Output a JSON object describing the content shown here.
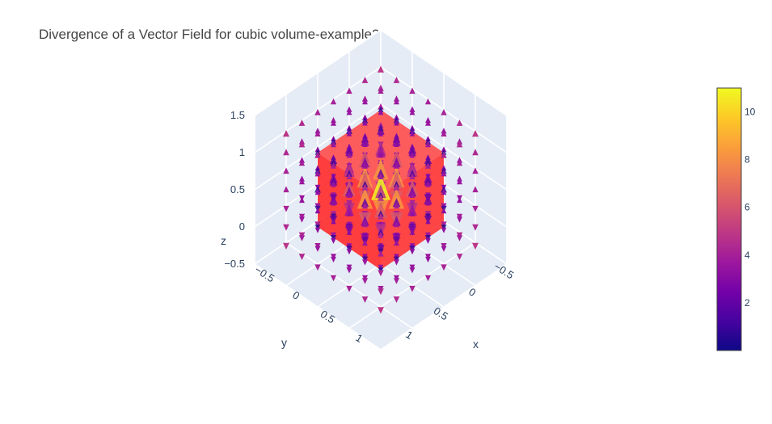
{
  "chart_data": {
    "type": "cone",
    "title": "Divergence of a Vector Field for cubic volume-example2",
    "xlabel": "x",
    "ylabel": "y",
    "zlabel": "z",
    "axes": {
      "x": {
        "range": [
          -0.5,
          1.5
        ],
        "ticks": [
          "−0.5",
          "0",
          "0.5",
          "1"
        ],
        "tick_values": [
          -0.5,
          0,
          0.5,
          1
        ]
      },
      "y": {
        "range": [
          -0.5,
          1.5
        ],
        "ticks": [
          "−0.5",
          "0",
          "0.5",
          "1"
        ],
        "tick_values": [
          -0.5,
          0,
          0.5,
          1
        ]
      },
      "z": {
        "range": [
          -0.5,
          1.5
        ],
        "ticks": [
          "−0.5",
          "0",
          "0.5",
          "1",
          "1.5"
        ],
        "tick_values": [
          -0.5,
          0,
          0.5,
          1,
          1.5
        ]
      }
    },
    "cube": {
      "x": [
        0,
        1
      ],
      "y": [
        0,
        1
      ],
      "z": [
        0,
        1
      ],
      "color": "#ff2a2a",
      "opacity": 0.9
    },
    "colorbar": {
      "min": 0,
      "max": 11,
      "ticks": [
        "2",
        "4",
        "6",
        "8",
        "10"
      ],
      "tick_values": [
        2,
        4,
        6,
        8,
        10
      ],
      "colorscale": [
        "#0d0887",
        "#46039f",
        "#7201a8",
        "#9c179e",
        "#bd3786",
        "#d8576b",
        "#ed7953",
        "#fb9f3a",
        "#fdca26",
        "#f0f921"
      ]
    }
  },
  "colors": {
    "grid": "#ffffff",
    "pane": "#e5ecf6",
    "text": "#2a3f5f"
  }
}
